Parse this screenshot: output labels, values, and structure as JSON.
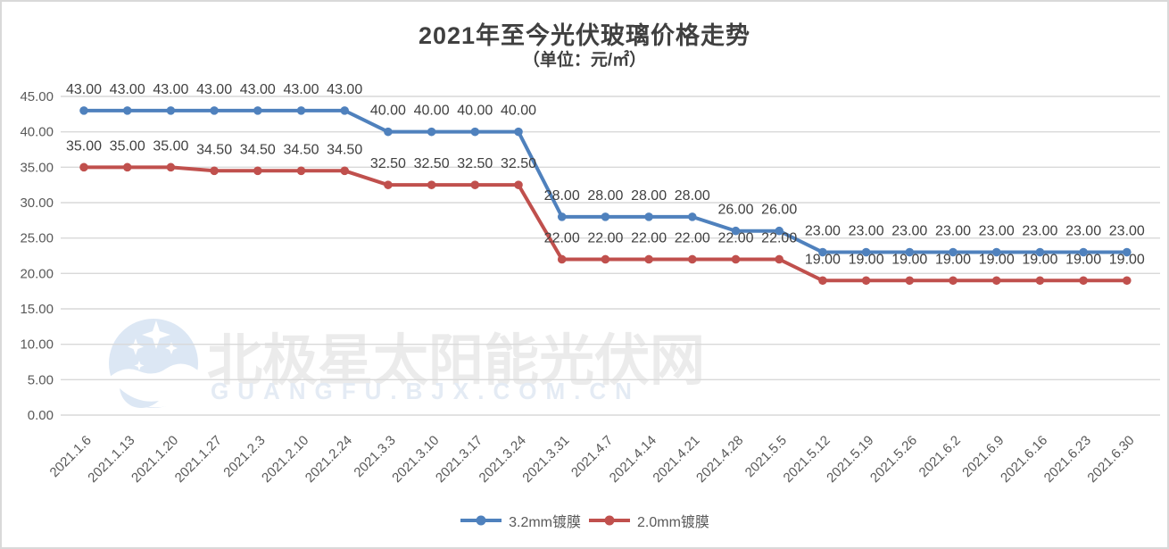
{
  "title": "2021年至今光伏玻璃价格走势",
  "subtitle": "（单位：元/㎡）",
  "watermark": {
    "cn": "北极星太阳能光伏网",
    "en": "GUANGFU.BJX.COM.CN",
    "logo": "bjx-sparkle-moon-logo"
  },
  "colors": {
    "series1": "#4F81BD",
    "series2": "#C0504D",
    "grid": "#D9D9D9",
    "axis_text": "#595959",
    "data_label_text": "#404040",
    "title_text": "#404040",
    "watermark_cn": "#EBEBEB",
    "watermark_en": "#E4EBF4",
    "watermark_logo": "#DCE7F4"
  },
  "chart_data": {
    "type": "line",
    "title": "2021年至今光伏玻璃价格走势",
    "subtitle_unit": "（单位：元/㎡）",
    "categories": [
      "2021.1.6",
      "2021.1.13",
      "2021.1.20",
      "2021.1.27",
      "2021.2.3",
      "2021.2.10",
      "2021.2.24",
      "2021.3.3",
      "2021.3.10",
      "2021.3.17",
      "2021.3.24",
      "2021.3.31",
      "2021.4.7",
      "2021.4.14",
      "2021.4.21",
      "2021.4.28",
      "2021.5.5",
      "2021.5.12",
      "2021.5.19",
      "2021.5.26",
      "2021.6.2",
      "2021.6.9",
      "2021.6.16",
      "2021.6.23",
      "2021.6.30"
    ],
    "series": [
      {
        "name": "3.2mm镀膜",
        "color": "#4F81BD",
        "values": [
          43,
          43,
          43,
          43,
          43,
          43,
          43,
          40,
          40,
          40,
          40,
          28,
          28,
          28,
          28,
          26,
          26,
          23,
          23,
          23,
          23,
          23,
          23,
          23,
          23
        ]
      },
      {
        "name": "2.0mm镀膜",
        "color": "#C0504D",
        "values": [
          35,
          35,
          35,
          34.5,
          34.5,
          34.5,
          34.5,
          32.5,
          32.5,
          32.5,
          32.5,
          22,
          22,
          22,
          22,
          22,
          22,
          19,
          19,
          19,
          19,
          19,
          19,
          19,
          19
        ]
      }
    ],
    "ylim": [
      0,
      45
    ],
    "y_step": 5,
    "y_tick_labels": [
      "0.00",
      "5.00",
      "10.00",
      "15.00",
      "20.00",
      "25.00",
      "30.00",
      "35.00",
      "40.00",
      "45.00"
    ],
    "data_label_decimals": 2,
    "grid": true,
    "legend_position": "bottom"
  }
}
